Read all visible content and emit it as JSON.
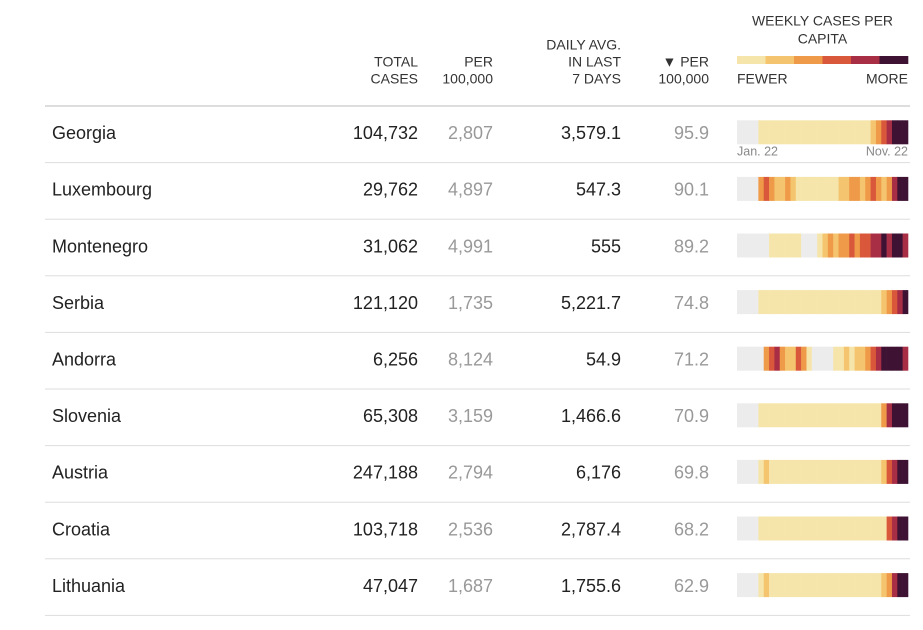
{
  "header": {
    "columns": [
      [
        "TOTAL",
        "CASES"
      ],
      [
        "PER",
        "100,000"
      ],
      [
        "DAILY AVG.",
        "IN LAST",
        "7 DAYS"
      ],
      [
        "▼ PER",
        "100,000"
      ]
    ],
    "legend_title": [
      "WEEKLY CASES PER",
      "CAPITA"
    ],
    "legend_fewer": "FEWER",
    "legend_more": "MORE",
    "scale_colors": [
      "#f6e5ab",
      "#f4c46e",
      "#ee9a48",
      "#d9573a",
      "#a82e45",
      "#3e1233"
    ],
    "no_data_color": "#ececec"
  },
  "strip_labels": [
    "Jan. 22",
    "Nov. 22"
  ],
  "rows": [
    {
      "country": "Georgia",
      "total": "104,732",
      "per100k": "2,807",
      "daily": "3,579.1",
      "daily_per100k": "95.9",
      "strip": [
        0,
        0,
        0,
        0,
        1,
        1,
        1,
        1,
        1,
        1,
        1,
        1,
        1,
        1,
        1,
        1,
        1,
        1,
        1,
        1,
        1,
        1,
        1,
        1,
        1,
        2,
        3,
        4,
        5,
        6,
        6,
        6
      ]
    },
    {
      "country": "Luxembourg",
      "total": "29,762",
      "per100k": "4,897",
      "daily": "547.3",
      "daily_per100k": "90.1",
      "strip": [
        0,
        0,
        0,
        0,
        3,
        4,
        3,
        2,
        2,
        3,
        2,
        1,
        1,
        1,
        1,
        1,
        1,
        1,
        1,
        2,
        2,
        3,
        3,
        2,
        3,
        4,
        3,
        2,
        3,
        5,
        6,
        6
      ]
    },
    {
      "country": "Montenegro",
      "total": "31,062",
      "per100k": "4,991",
      "daily": "555",
      "daily_per100k": "89.2",
      "strip": [
        0,
        0,
        0,
        0,
        0,
        0,
        1,
        1,
        1,
        1,
        1,
        1,
        0,
        0,
        0,
        1,
        2,
        3,
        2,
        3,
        3,
        4,
        3,
        4,
        4,
        5,
        5,
        6,
        5,
        6,
        6,
        5
      ]
    },
    {
      "country": "Serbia",
      "total": "121,120",
      "per100k": "1,735",
      "daily": "5,221.7",
      "daily_per100k": "74.8",
      "strip": [
        0,
        0,
        0,
        0,
        1,
        1,
        1,
        1,
        1,
        1,
        1,
        1,
        1,
        1,
        1,
        1,
        1,
        1,
        1,
        1,
        1,
        1,
        1,
        1,
        1,
        1,
        1,
        2,
        3,
        4,
        5,
        6
      ]
    },
    {
      "country": "Andorra",
      "total": "6,256",
      "per100k": "8,124",
      "daily": "54.9",
      "daily_per100k": "71.2",
      "strip": [
        0,
        0,
        0,
        0,
        0,
        3,
        4,
        5,
        3,
        2,
        2,
        4,
        3,
        1,
        0,
        0,
        0,
        0,
        1,
        1,
        2,
        1,
        2,
        2,
        3,
        4,
        5,
        6,
        6,
        6,
        6,
        5
      ]
    },
    {
      "country": "Slovenia",
      "total": "65,308",
      "per100k": "3,159",
      "daily": "1,466.6",
      "daily_per100k": "70.9",
      "strip": [
        0,
        0,
        0,
        0,
        1,
        1,
        1,
        1,
        1,
        1,
        1,
        1,
        1,
        1,
        1,
        1,
        1,
        1,
        1,
        1,
        1,
        1,
        1,
        1,
        1,
        1,
        1,
        3,
        5,
        6,
        6,
        6
      ]
    },
    {
      "country": "Austria",
      "total": "247,188",
      "per100k": "2,794",
      "daily": "6,176",
      "daily_per100k": "69.8",
      "strip": [
        0,
        0,
        0,
        0,
        1,
        2,
        1,
        1,
        1,
        1,
        1,
        1,
        1,
        1,
        1,
        1,
        1,
        1,
        1,
        1,
        1,
        1,
        1,
        1,
        1,
        1,
        1,
        2,
        4,
        5,
        6,
        6
      ]
    },
    {
      "country": "Croatia",
      "total": "103,718",
      "per100k": "2,536",
      "daily": "2,787.4",
      "daily_per100k": "68.2",
      "strip": [
        0,
        0,
        0,
        0,
        1,
        1,
        1,
        1,
        1,
        1,
        1,
        1,
        1,
        1,
        1,
        1,
        1,
        1,
        1,
        1,
        1,
        1,
        1,
        1,
        1,
        1,
        1,
        1,
        4,
        5,
        6,
        6
      ]
    },
    {
      "country": "Lithuania",
      "total": "47,047",
      "per100k": "1,687",
      "daily": "1,755.6",
      "daily_per100k": "62.9",
      "strip": [
        0,
        0,
        0,
        0,
        1,
        2,
        1,
        1,
        1,
        1,
        1,
        1,
        1,
        1,
        1,
        1,
        1,
        1,
        1,
        1,
        1,
        1,
        1,
        1,
        1,
        1,
        1,
        2,
        3,
        5,
        6,
        6
      ]
    }
  ]
}
